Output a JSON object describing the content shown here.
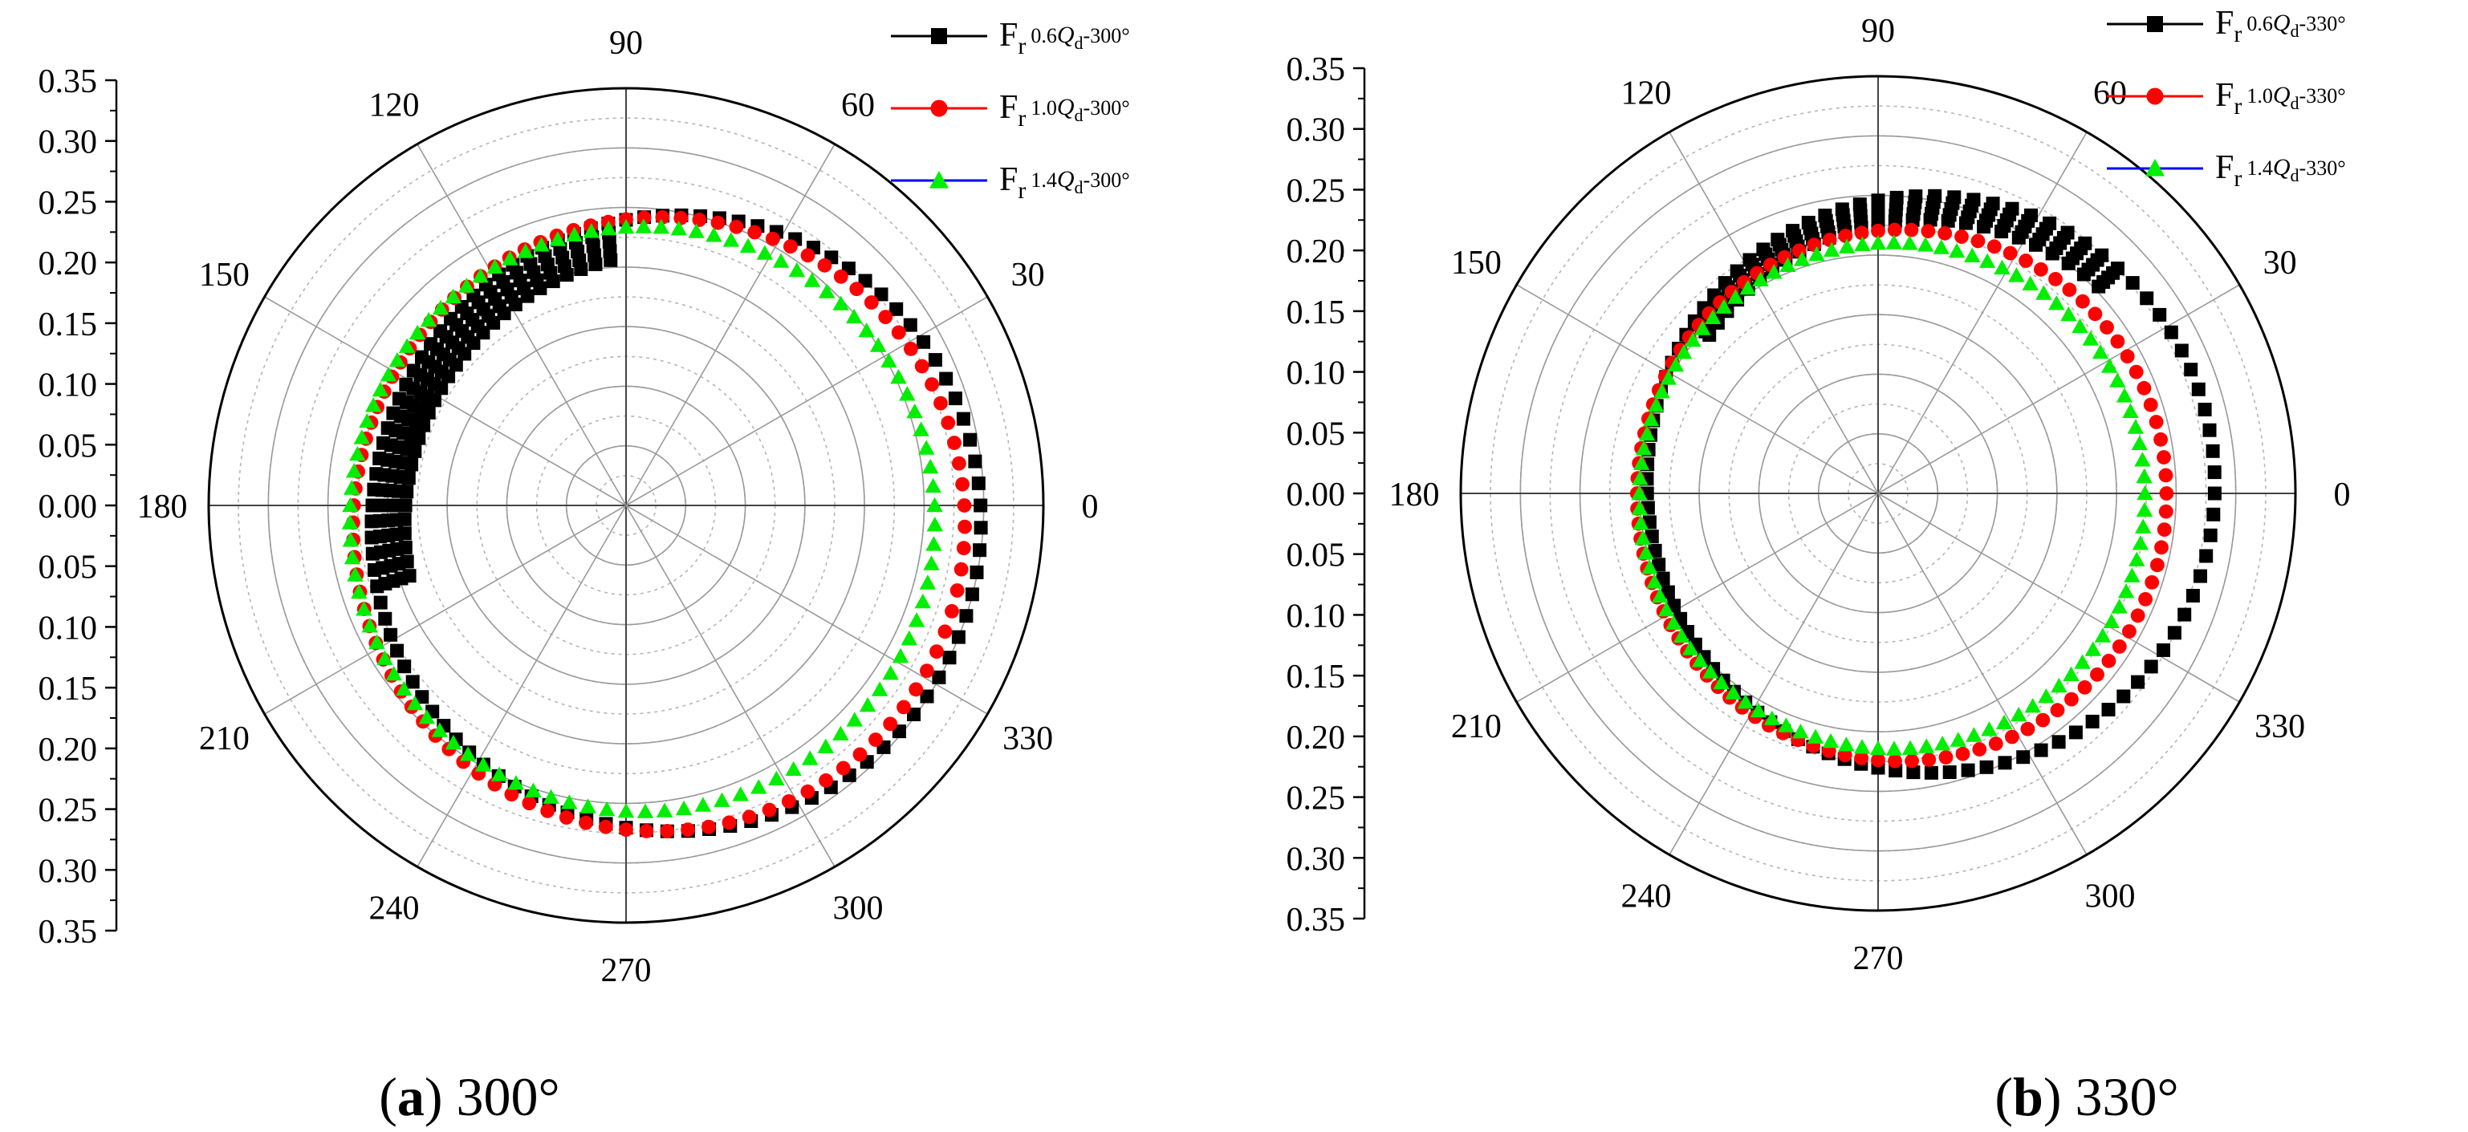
{
  "figure": {
    "caption_a_letter": "a",
    "caption_a_value": "300°",
    "caption_b_letter": "b",
    "caption_b_value": "330°"
  },
  "chart_data": [
    {
      "type": "polar-scatter",
      "panel": "a",
      "r_axis": {
        "min": 0,
        "max": 0.35,
        "step": 0.05,
        "labels": [
          "0.35",
          "0.30",
          "0.25",
          "0.20",
          "0.15",
          "0.10",
          "0.05",
          "0.00",
          "0.05",
          "0.10",
          "0.15",
          "0.20",
          "0.25",
          "0.30",
          "0.35"
        ]
      },
      "angle_labels": [
        "0",
        "30",
        "60",
        "90",
        "120",
        "150",
        "180",
        "210",
        "240",
        "270",
        "300",
        "330"
      ],
      "series": [
        {
          "name": "Fr 0.6Qd-300°",
          "label_main": "F",
          "label_sub1": "r",
          "label_sub2": "0.6",
          "label_q": "Q",
          "label_qsub": "d",
          "label_tail": "-300°",
          "color": "#000000",
          "marker": "square",
          "fit": {
            "r0": 0.255,
            "a1": 0.045,
            "p1": 340,
            "a2": 0.0,
            "p2": 0
          },
          "inner": {
            "from": 90,
            "to": 200,
            "scale": 0.87
          }
        },
        {
          "name": "Fr 1.0Qd-300°",
          "label_main": "F",
          "label_sub1": "r",
          "label_sub2": "1.0",
          "label_q": "Q",
          "label_qsub": "d",
          "label_tail": "-300°",
          "color": "#ff0000",
          "marker": "circle",
          "fit": {
            "r0": 0.256,
            "a1": 0.032,
            "p1": 330,
            "a2": 0.0,
            "p2": 0
          }
        },
        {
          "name": "Fr 1.4Qd-300°",
          "label_main": "F",
          "label_sub1": "r",
          "label_sub2": "1.4",
          "label_q": "Q",
          "label_qsub": "d",
          "label_tail": "-300°",
          "color": "#00ee00",
          "marker": "triangle",
          "fit": {
            "r0": 0.245,
            "a1": 0.018,
            "p1": 320,
            "a2": 0.0,
            "p2": 0
          }
        }
      ]
    },
    {
      "type": "polar-scatter",
      "panel": "b",
      "r_axis": {
        "min": 0,
        "max": 0.35,
        "step": 0.05,
        "labels": [
          "0.35",
          "0.30",
          "0.25",
          "0.20",
          "0.15",
          "0.10",
          "0.05",
          "0.00",
          "0.05",
          "0.10",
          "0.15",
          "0.20",
          "0.25",
          "0.30",
          "0.35"
        ]
      },
      "angle_labels": [
        "0",
        "30",
        "60",
        "90",
        "120",
        "150",
        "180",
        "210",
        "240",
        "270",
        "300",
        "330"
      ],
      "series": [
        {
          "name": "Fr 0.6Qd-330°",
          "label_main": "F",
          "label_sub1": "r",
          "label_sub2": "0.6",
          "label_q": "Q",
          "label_qsub": "d",
          "label_tail": "-330°",
          "color": "#000000",
          "marker": "square",
          "fit": {
            "r0": 0.238,
            "a1": 0.045,
            "p1": 10,
            "a2": 0.0,
            "p2": 0
          },
          "inner": {
            "from": 40,
            "to": 140,
            "scale": 0.92
          }
        },
        {
          "name": "Fr 1.0Qd-330°",
          "label_main": "F",
          "label_sub1": "r",
          "label_sub2": "1.0",
          "label_q": "Q",
          "label_qsub": "d",
          "label_tail": "-330°",
          "color": "#ff0000",
          "marker": "circle",
          "fit": {
            "r0": 0.222,
            "a1": 0.02,
            "p1": 355,
            "a2": 0.0,
            "p2": 0
          }
        },
        {
          "name": "Fr 1.4Qd-330°",
          "label_main": "F",
          "label_sub1": "r",
          "label_sub2": "1.4",
          "label_q": "Q",
          "label_qsub": "d",
          "label_tail": "-330°",
          "color": "#00ee00",
          "marker": "triangle",
          "fit": {
            "r0": 0.212,
            "a1": 0.012,
            "p1": 350,
            "a2": 0.0,
            "p2": 0
          }
        }
      ]
    }
  ]
}
